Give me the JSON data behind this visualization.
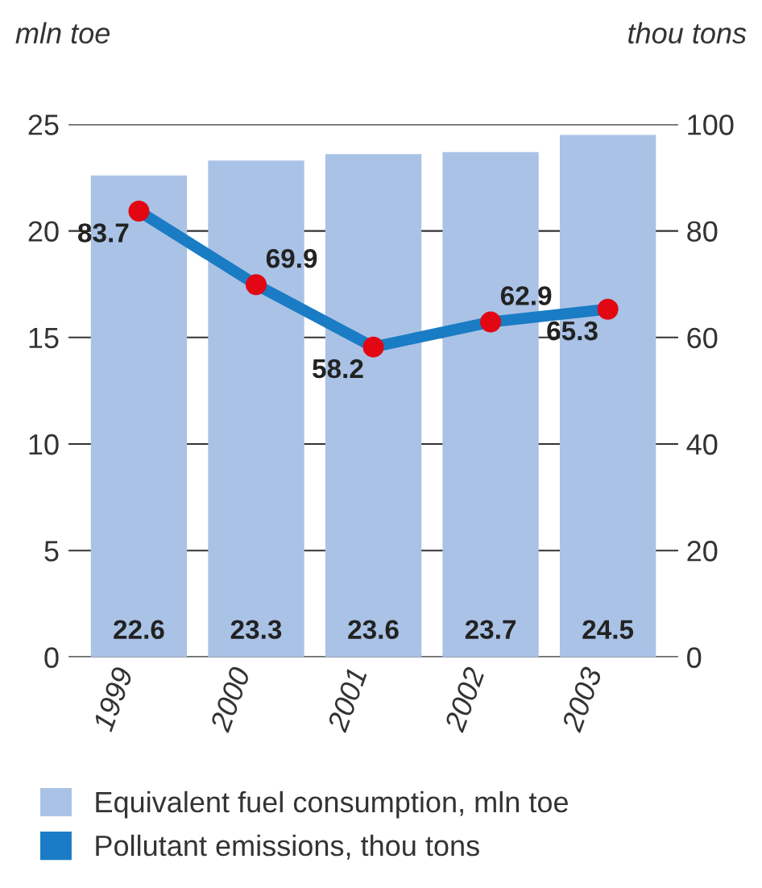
{
  "chart_data": {
    "type": "bar",
    "categories": [
      "1999",
      "2000",
      "2001",
      "2002",
      "2003"
    ],
    "ylabel": "mln toe",
    "y2label": "thou tons",
    "ylim": [
      0,
      25
    ],
    "yticks": [
      0,
      5,
      10,
      15,
      20,
      25
    ],
    "y2lim": [
      0,
      100
    ],
    "y2ticks": [
      0,
      20,
      40,
      60,
      80,
      100
    ],
    "grid": "y",
    "legend": "bottom",
    "data_labels": true,
    "series": [
      {
        "name": "Equivalent fuel consumption, mln toe",
        "color": "#a9c2e6",
        "values": [
          22.6,
          23.3,
          23.6,
          23.7,
          24.5
        ]
      },
      {
        "name": "Pollutant emissions, thou tons",
        "type": "line",
        "axis": "y2",
        "color": "#1a7cc4",
        "colors": [
          "#e30613",
          "#e30613",
          "#e30613",
          "#e30613",
          "#e30613"
        ],
        "marker": "circle",
        "line_style": "solid",
        "values": [
          83.7,
          69.9,
          58.2,
          62.9,
          65.3
        ]
      }
    ]
  }
}
